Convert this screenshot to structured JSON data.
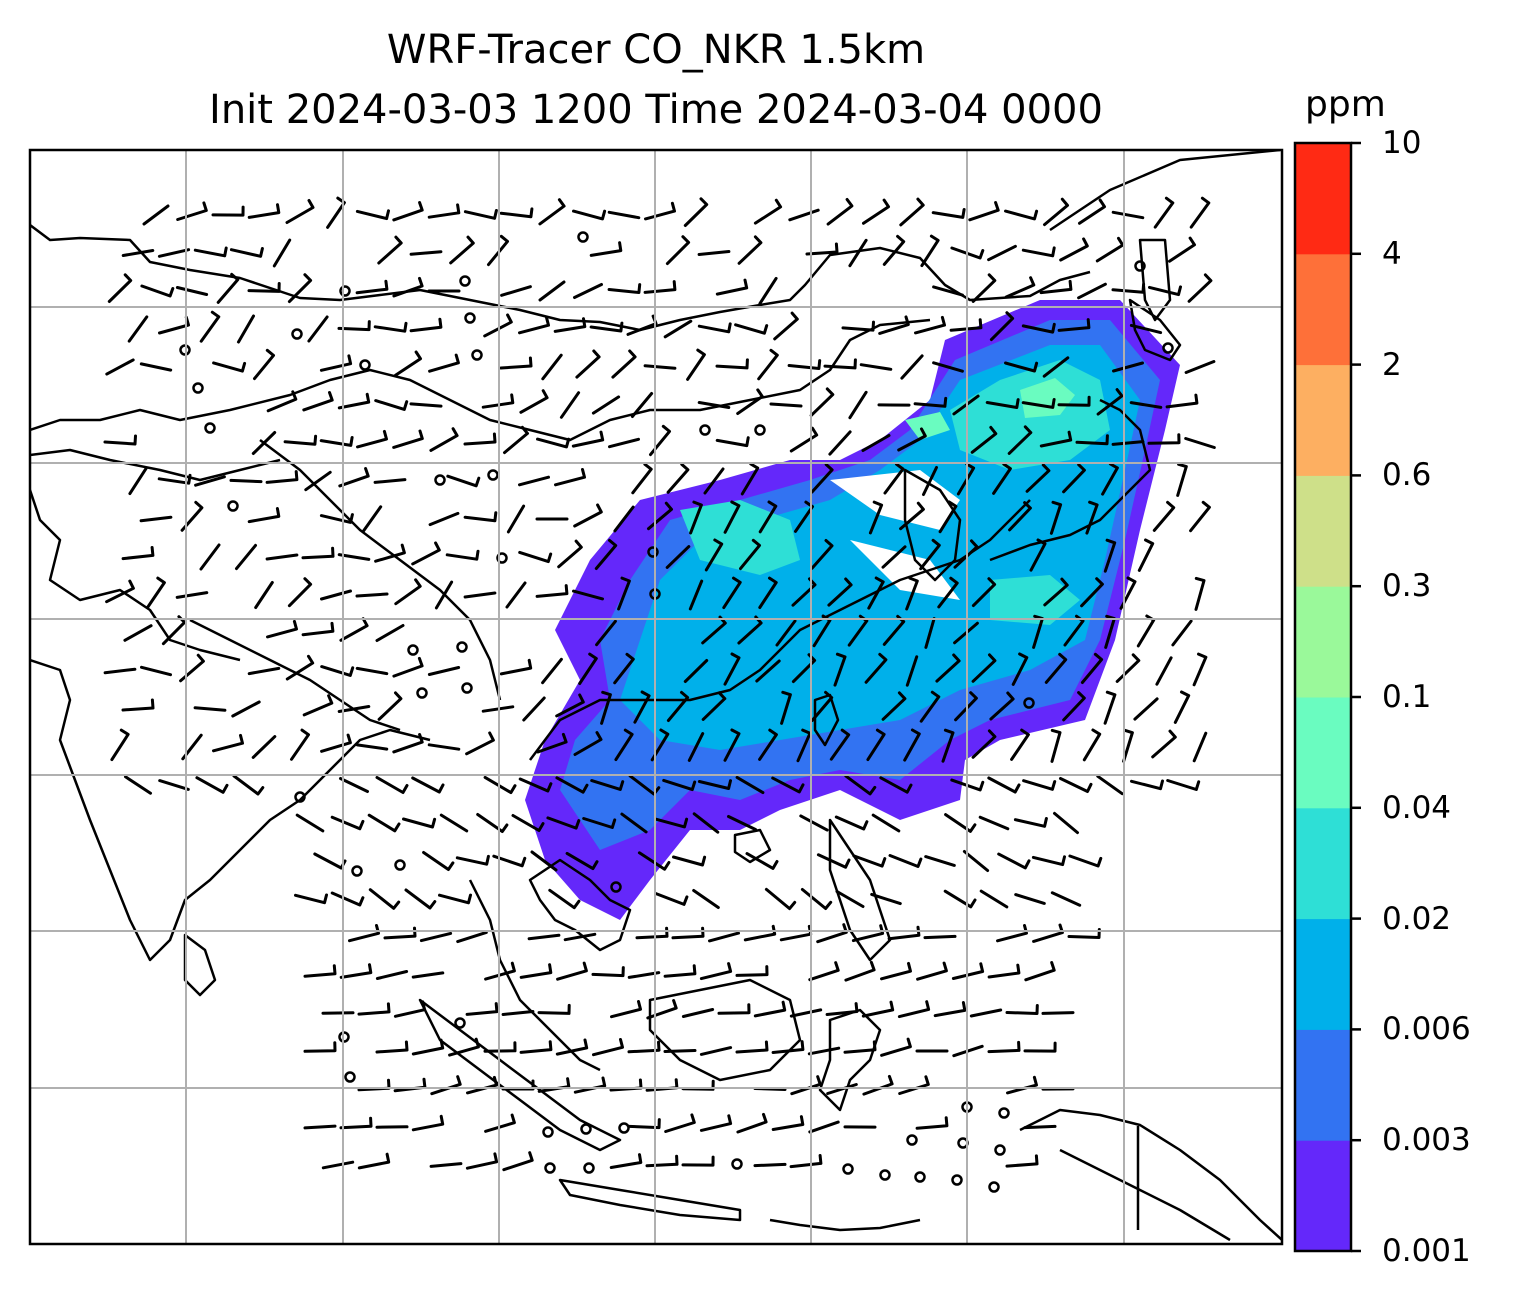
{
  "title": {
    "line1": "WRF-Tracer CO_NKR 1.5km",
    "line2": "Init 2024-03-03 1200 Time 2024-03-04 0000"
  },
  "colorbar": {
    "unit": "ppm",
    "levels": [
      "0.001",
      "0.003",
      "0.006",
      "0.02",
      "0.04",
      "0.1",
      "0.3",
      "0.6",
      "2",
      "4",
      "10"
    ],
    "colors": [
      "#6428fa",
      "#3273f2",
      "#00b0ea",
      "#2edfd6",
      "#6afcc0",
      "#9af99a",
      "#cee089",
      "#fdaf61",
      "#fe7039",
      "#ff2a14"
    ]
  }
}
